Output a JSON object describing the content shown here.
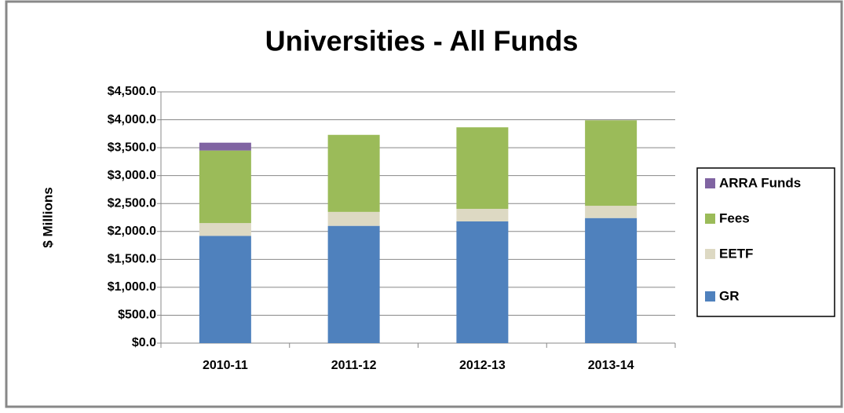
{
  "chart_data": {
    "type": "stacked_bar",
    "title": "Universities - All Funds",
    "ylabel": "$ Millions",
    "categories": [
      "2010-11",
      "2011-12",
      "2012-13",
      "2013-14"
    ],
    "series": [
      {
        "name": "GR",
        "color": "#4f81bd",
        "values": [
          1920,
          2100,
          2180,
          2240
        ]
      },
      {
        "name": "EETF",
        "color": "#ddd9c3",
        "values": [
          230,
          250,
          225,
          220
        ]
      },
      {
        "name": "Fees",
        "color": "#9bbb59",
        "values": [
          1300,
          1380,
          1460,
          1530
        ]
      },
      {
        "name": "ARRA Funds",
        "color": "#8064a2",
        "values": [
          140,
          0,
          0,
          0
        ]
      }
    ],
    "ylim": [
      0,
      4500
    ],
    "yticks": [
      {
        "value": 0,
        "label": "$0.0"
      },
      {
        "value": 500,
        "label": "$500.0"
      },
      {
        "value": 1000,
        "label": "$1,000.0"
      },
      {
        "value": 1500,
        "label": "$1,500.0"
      },
      {
        "value": 2000,
        "label": "$2,000.0"
      },
      {
        "value": 2500,
        "label": "$2,500.0"
      },
      {
        "value": 3000,
        "label": "$3,000.0"
      },
      {
        "value": 3500,
        "label": "$3,500.0"
      },
      {
        "value": 4000,
        "label": "$4,000.0"
      },
      {
        "value": 4500,
        "label": "$4,500.0"
      }
    ],
    "grid": true,
    "legend": "right"
  }
}
